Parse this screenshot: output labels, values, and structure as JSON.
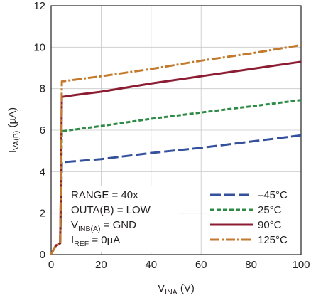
{
  "chart_data": {
    "type": "line",
    "xlabel": {
      "main": "V",
      "sub": "INA",
      "unit": " (V)"
    },
    "ylabel": {
      "main": "I",
      "sub": "VA(B)",
      "unit": " (µA)"
    },
    "xlim": [
      0,
      100
    ],
    "ylim": [
      0,
      12
    ],
    "x_ticks": [
      0,
      20,
      40,
      60,
      80,
      100
    ],
    "y_ticks": [
      0,
      2,
      4,
      6,
      8,
      10,
      12
    ],
    "grid": true,
    "legend_position": "bottom-right",
    "series": [
      {
        "name": "–45°C",
        "color": "#35519e",
        "dash": "long-dash",
        "x": [
          0,
          1,
          2,
          3,
          3.6,
          4.0,
          4.3,
          20,
          40,
          60,
          80,
          100
        ],
        "y": [
          0,
          0.25,
          0.45,
          0.5,
          0.55,
          2.5,
          4.45,
          4.6,
          4.9,
          5.15,
          5.45,
          5.75
        ]
      },
      {
        "name": "25°C",
        "color": "#2e8b45",
        "dash": "dash",
        "x": [
          0,
          1,
          2,
          3,
          3.6,
          4.0,
          4.3,
          20,
          40,
          60,
          80,
          100
        ],
        "y": [
          0,
          0.25,
          0.45,
          0.5,
          0.55,
          3.0,
          5.95,
          6.2,
          6.55,
          6.85,
          7.15,
          7.45
        ]
      },
      {
        "name": "90°C",
        "color": "#8b1c32",
        "dash": "solid",
        "x": [
          0,
          1,
          2,
          3,
          3.6,
          4.0,
          4.3,
          10,
          20,
          40,
          60,
          80,
          100
        ],
        "y": [
          0,
          0.25,
          0.45,
          0.5,
          0.55,
          4.0,
          7.6,
          7.7,
          7.85,
          8.25,
          8.6,
          8.95,
          9.3
        ]
      },
      {
        "name": "125°C",
        "color": "#c47a2c",
        "dash": "dash-dot",
        "x": [
          0,
          1,
          2,
          3,
          3.6,
          4.0,
          4.3,
          20,
          40,
          60,
          80,
          100
        ],
        "y": [
          0,
          0.25,
          0.45,
          0.5,
          0.55,
          4.5,
          8.35,
          8.6,
          8.95,
          9.35,
          9.7,
          10.1
        ]
      }
    ],
    "annotations": [
      {
        "main": "RANGE = 40x"
      },
      {
        "main": "OUTA(B) = LOW"
      },
      {
        "main": "V",
        "sub": "INB(A)",
        "rest": " = GND"
      },
      {
        "main": "I",
        "sub": "REF",
        "rest": " = 0µA"
      }
    ]
  }
}
